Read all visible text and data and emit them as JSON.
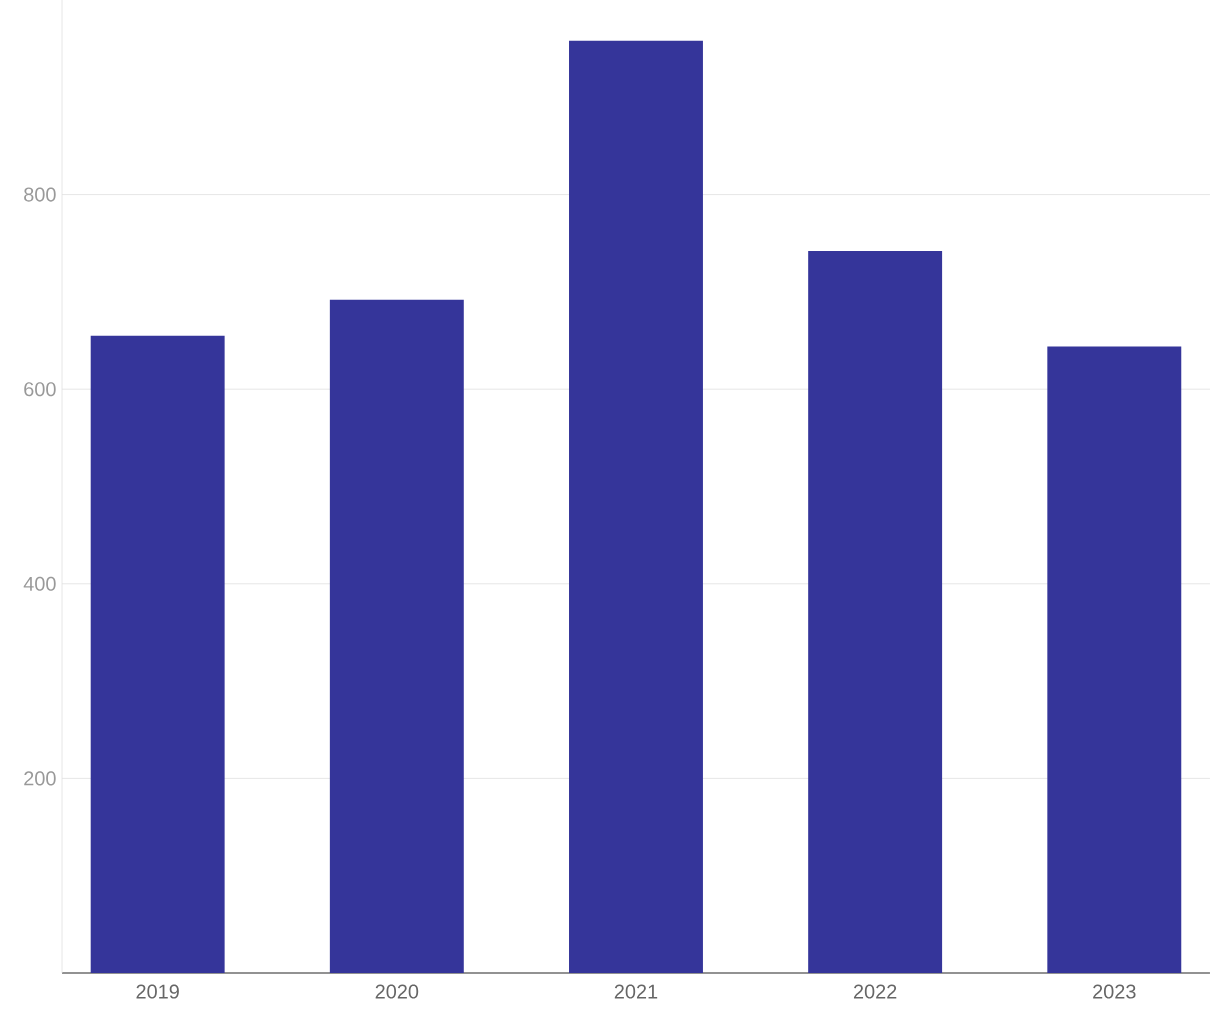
{
  "chart_data": {
    "type": "bar",
    "categories": [
      "2019",
      "2020",
      "2021",
      "2022",
      "2023"
    ],
    "values": [
      655,
      692,
      958,
      742,
      644
    ],
    "color": "#35359a",
    "ylim": [
      0,
      1000
    ],
    "yticks": [
      200,
      400,
      600,
      800
    ],
    "grid": "y"
  }
}
